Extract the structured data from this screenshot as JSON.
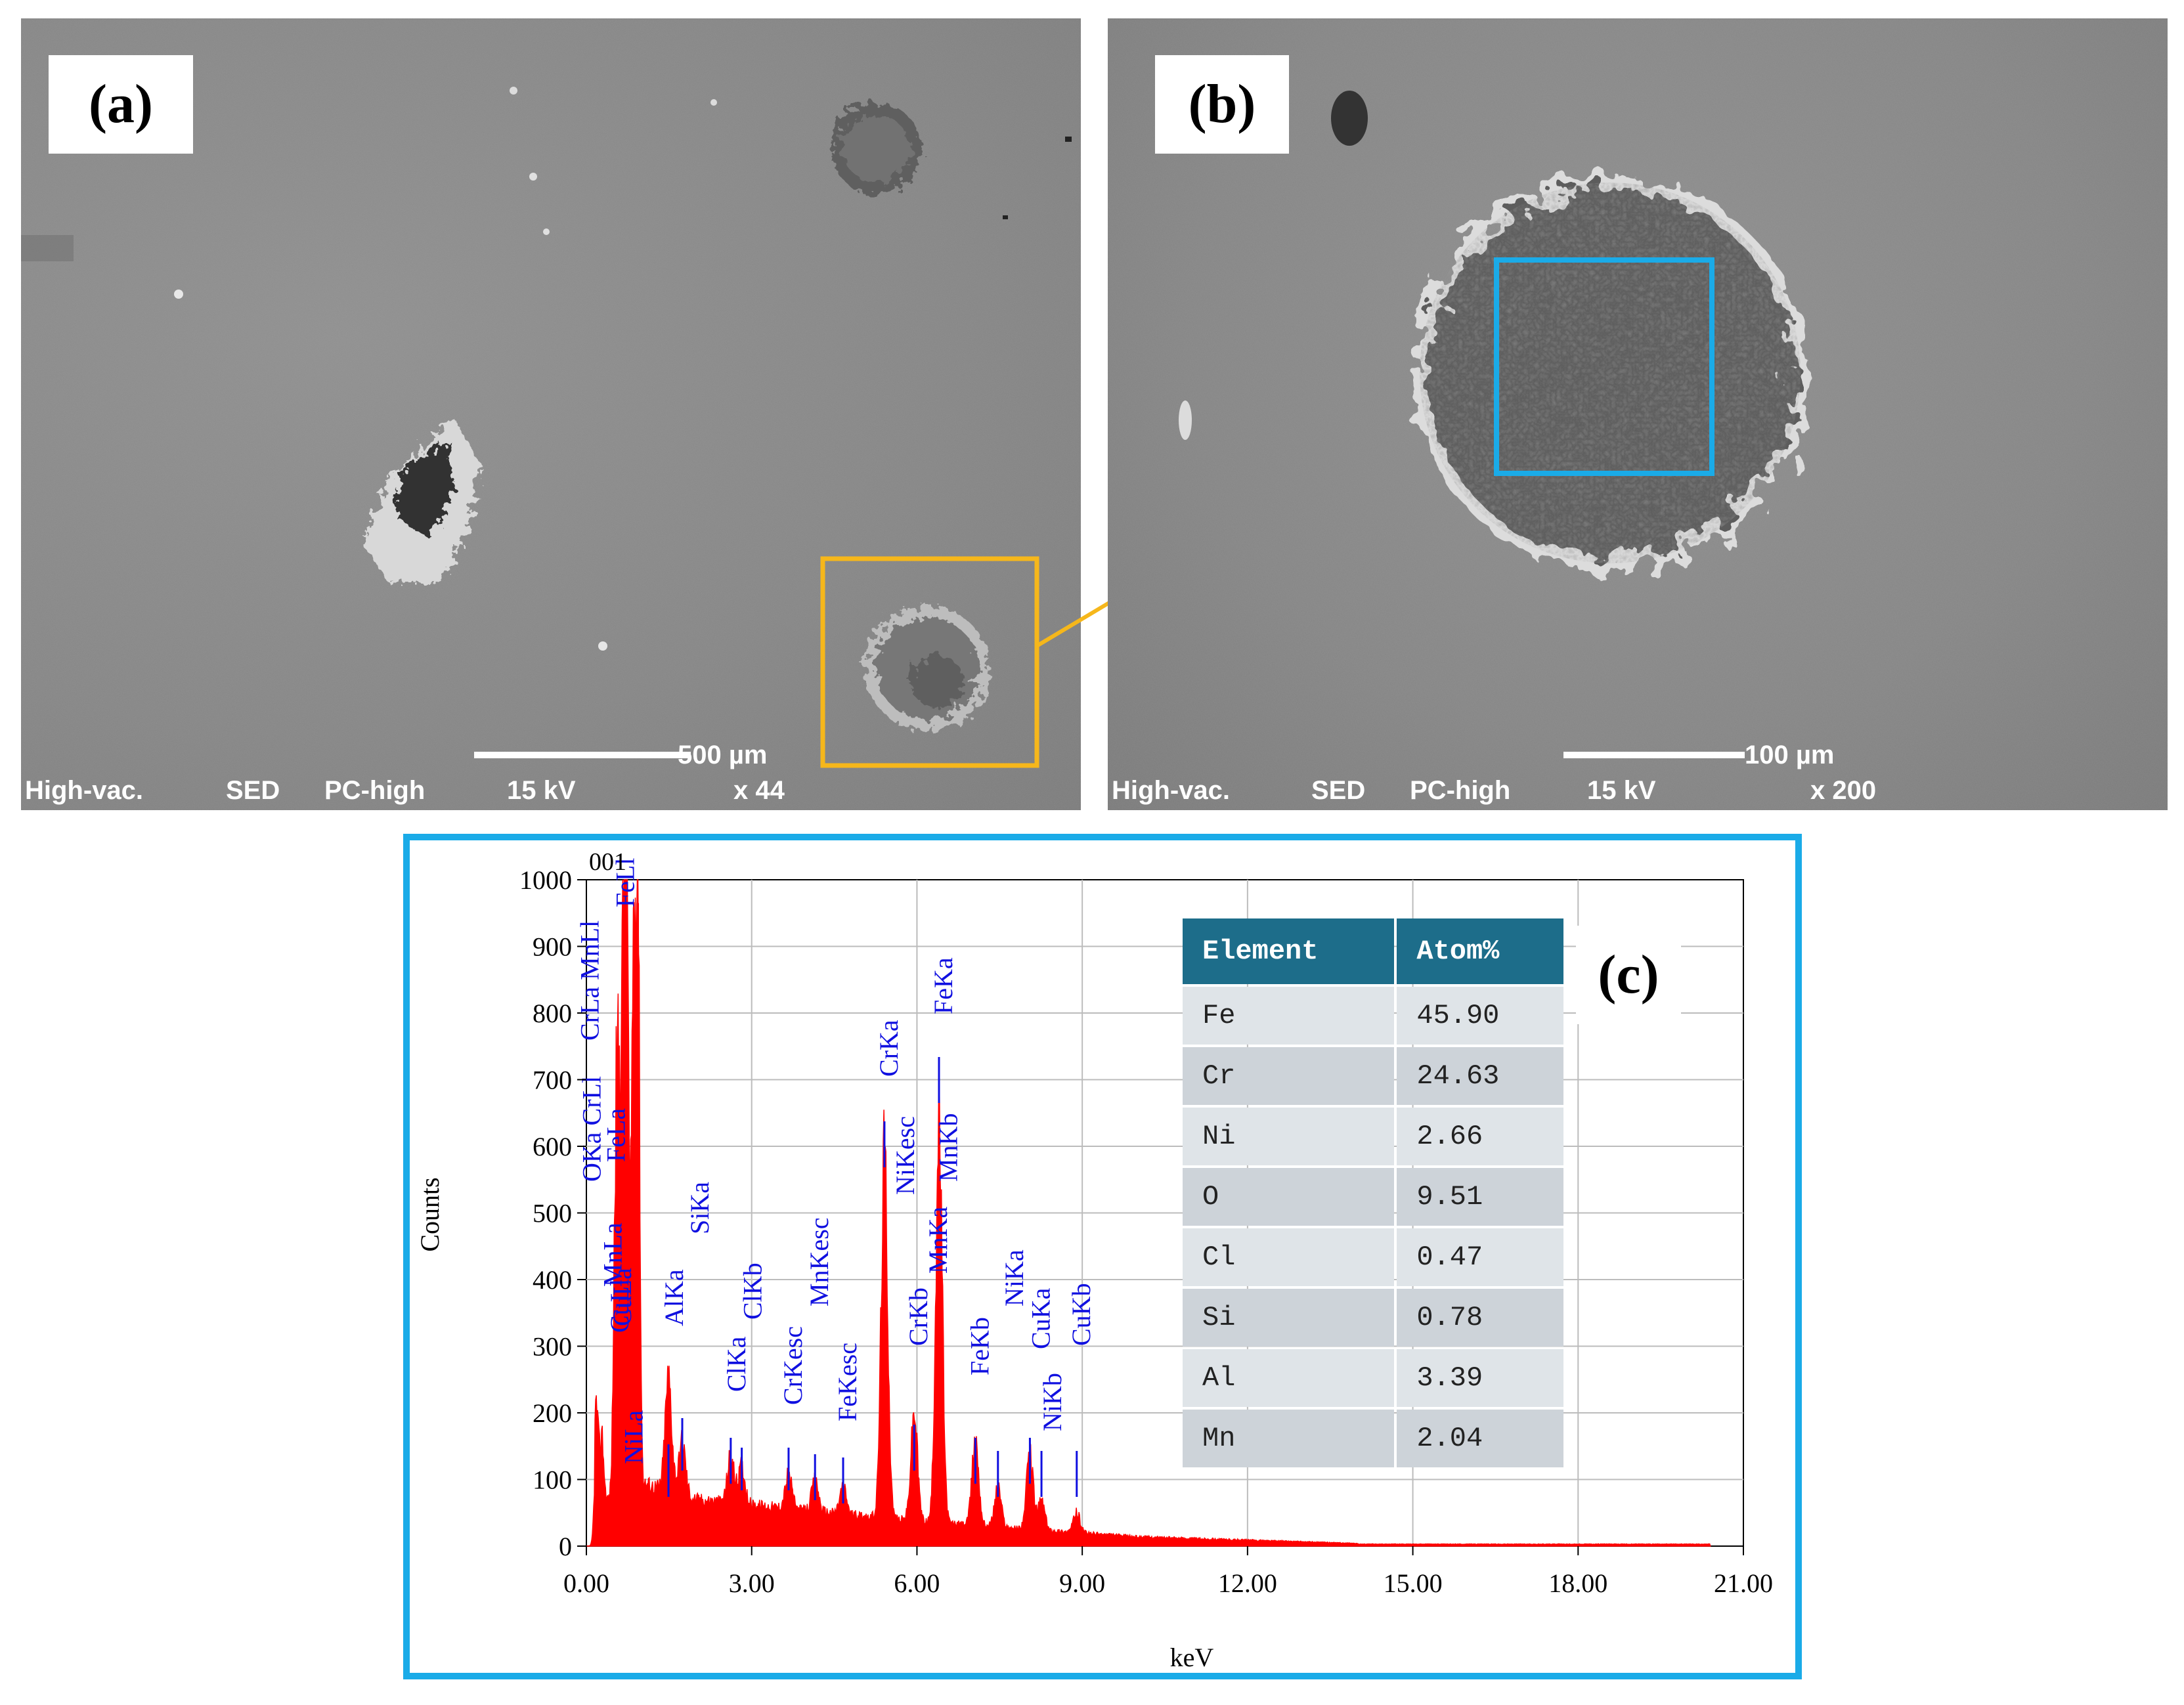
{
  "panel_a": {
    "label": "(a)",
    "scale_label": "500 µm",
    "footer": {
      "vacuum": "High-vac.",
      "detector": "SED",
      "mode": "PC-high",
      "voltage": "15 kV",
      "mag": "x 44"
    }
  },
  "panel_b": {
    "label": "(b)",
    "scale_label": "100 µm",
    "footer": {
      "vacuum": "High-vac.",
      "detector": "SED",
      "mode": "PC-high",
      "voltage": "15 kV",
      "mag": "x 200"
    }
  },
  "panel_c": {
    "label": "(c)",
    "table": {
      "headers": [
        "Element",
        "Atom%"
      ],
      "rows": [
        [
          "Fe",
          "45.90"
        ],
        [
          "Cr",
          "24.63"
        ],
        [
          "Ni",
          "2.66"
        ],
        [
          "O",
          "9.51"
        ],
        [
          "Cl",
          "0.47"
        ],
        [
          "Si",
          "0.78"
        ],
        [
          "Al",
          "3.39"
        ],
        [
          "Mn",
          "2.04"
        ]
      ]
    }
  },
  "colors": {
    "highlight_orange": "#f6b71b",
    "highlight_blue": "#1aabe8",
    "spectrum_red": "#ff0000",
    "peak_label_blue": "#1010e0",
    "table_header": "#1d6d8a"
  },
  "chart_data": {
    "type": "bar",
    "title": "001",
    "xlabel": "keV",
    "ylabel": "Counts",
    "xlim": [
      0,
      21
    ],
    "ylim": [
      0,
      1000
    ],
    "x_ticks": [
      "0.00",
      "3.00",
      "6.00",
      "9.00",
      "12.00",
      "15.00",
      "18.00",
      "21.00"
    ],
    "y_ticks": [
      "0",
      "100",
      "200",
      "300",
      "400",
      "500",
      "600",
      "700",
      "800",
      "900",
      "1000"
    ],
    "grid": true,
    "peaks_kev": [
      0.18,
      0.28,
      0.52,
      0.57,
      0.64,
      0.7,
      0.74,
      0.85,
      0.93,
      1.49,
      1.74,
      2.62,
      2.82,
      3.67,
      4.15,
      4.66,
      5.41,
      5.95,
      6.4,
      7.06,
      7.47,
      8.05,
      8.26,
      8.9
    ],
    "peaks_counts": [
      150,
      100,
      320,
      470,
      540,
      600,
      650,
      750,
      965,
      170,
      80,
      70,
      55,
      50,
      45,
      40,
      540,
      160,
      590,
      130,
      60,
      115,
      45,
      30
    ],
    "peak_labels": [
      {
        "text": "FeLl",
        "kev": 0.7
      },
      {
        "text": "CrLa MnLl",
        "kev": 0.48
      },
      {
        "text": "OKa CrLl",
        "kev": 0.52
      },
      {
        "text": "FeLa",
        "kev": 0.7
      },
      {
        "text": "MnLa",
        "kev": 0.64
      },
      {
        "text": "CuLl",
        "kev": 0.93
      },
      {
        "text": "CuLa",
        "kev": 0.93
      },
      {
        "text": "NiLa",
        "kev": 0.85
      },
      {
        "text": "AlKa",
        "kev": 1.49
      },
      {
        "text": "SiKa",
        "kev": 1.74
      },
      {
        "text": "ClKa",
        "kev": 2.62
      },
      {
        "text": "ClKb",
        "kev": 2.82
      },
      {
        "text": "CrKesc",
        "kev": 3.67
      },
      {
        "text": "MnKesc",
        "kev": 4.15
      },
      {
        "text": "FeKesc",
        "kev": 4.66
      },
      {
        "text": "CrKa",
        "kev": 5.41
      },
      {
        "text": "NiKesc",
        "kev": 5.73
      },
      {
        "text": "CrKb",
        "kev": 5.95
      },
      {
        "text": "MnKa",
        "kev": 5.9
      },
      {
        "text": "FeKa",
        "kev": 6.4
      },
      {
        "text": "MnKb",
        "kev": 6.49
      },
      {
        "text": "FeKb",
        "kev": 7.06
      },
      {
        "text": "NiKa",
        "kev": 7.47
      },
      {
        "text": "CuKa",
        "kev": 8.05
      },
      {
        "text": "NiKb",
        "kev": 8.26
      },
      {
        "text": "CuKb",
        "kev": 8.9
      }
    ]
  }
}
